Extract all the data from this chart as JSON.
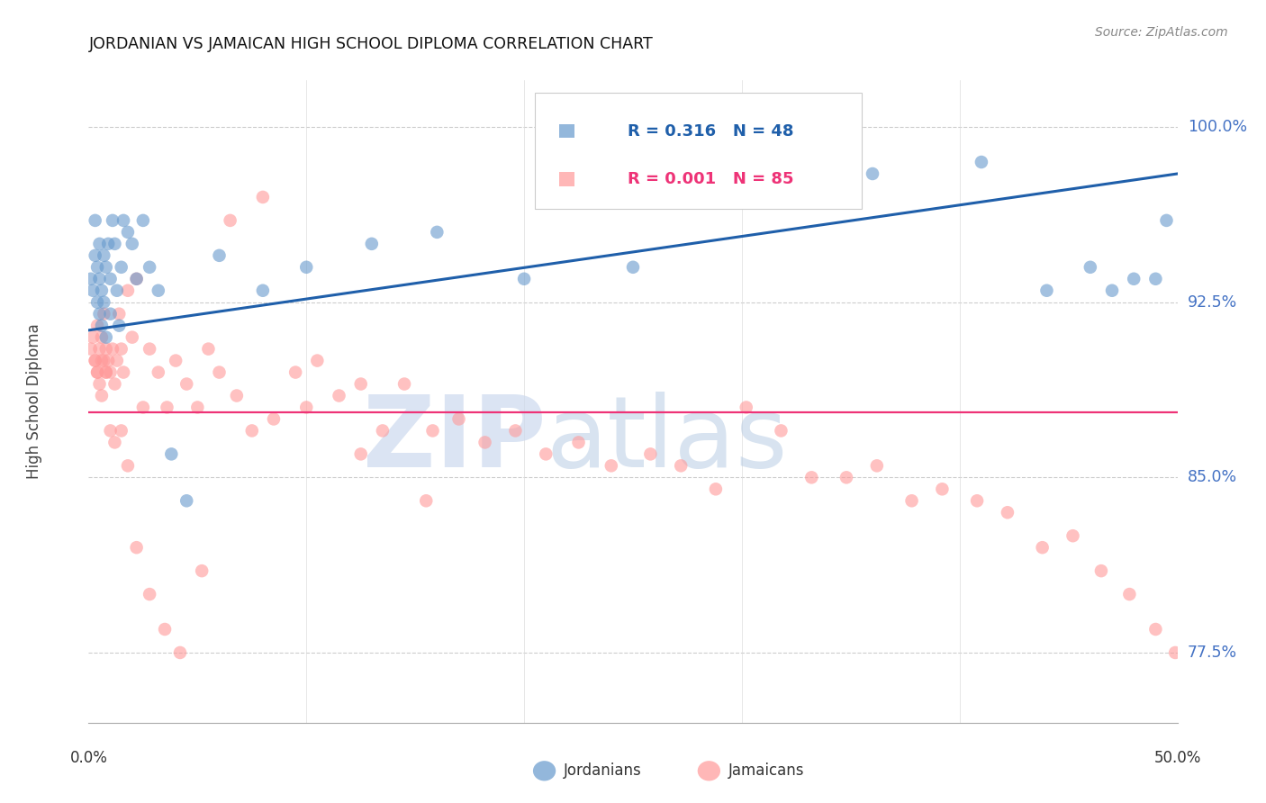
{
  "title": "JORDANIAN VS JAMAICAN HIGH SCHOOL DIPLOMA CORRELATION CHART",
  "source": "Source: ZipAtlas.com",
  "ylabel": "High School Diploma",
  "y_ticks": [
    0.775,
    0.85,
    0.925,
    1.0
  ],
  "y_tick_labels": [
    "77.5%",
    "85.0%",
    "92.5%",
    "100.0%"
  ],
  "y_tick_color": "#4472C4",
  "blue_color": "#6699CC",
  "pink_color": "#FF9999",
  "trend_blue": "#1f5faa",
  "trend_pink": "#ee3377",
  "xlim": [
    0.0,
    0.5
  ],
  "ylim": [
    0.745,
    1.02
  ],
  "pink_trend_y": 0.878,
  "blue_trend_x": [
    0.0,
    0.5
  ],
  "blue_trend_y": [
    0.913,
    0.98
  ],
  "jordanians_x": [
    0.001,
    0.002,
    0.003,
    0.003,
    0.004,
    0.004,
    0.005,
    0.005,
    0.005,
    0.006,
    0.006,
    0.007,
    0.007,
    0.008,
    0.008,
    0.009,
    0.01,
    0.01,
    0.011,
    0.012,
    0.013,
    0.014,
    0.015,
    0.016,
    0.018,
    0.02,
    0.022,
    0.025,
    0.028,
    0.032,
    0.038,
    0.045,
    0.06,
    0.08,
    0.1,
    0.13,
    0.16,
    0.2,
    0.25,
    0.31,
    0.36,
    0.41,
    0.44,
    0.46,
    0.47,
    0.48,
    0.49,
    0.495
  ],
  "jordanians_y": [
    0.935,
    0.93,
    0.945,
    0.96,
    0.925,
    0.94,
    0.92,
    0.935,
    0.95,
    0.915,
    0.93,
    0.945,
    0.925,
    0.91,
    0.94,
    0.95,
    0.935,
    0.92,
    0.96,
    0.95,
    0.93,
    0.915,
    0.94,
    0.96,
    0.955,
    0.95,
    0.935,
    0.96,
    0.94,
    0.93,
    0.86,
    0.84,
    0.945,
    0.93,
    0.94,
    0.95,
    0.955,
    0.935,
    0.94,
    0.97,
    0.98,
    0.985,
    0.93,
    0.94,
    0.93,
    0.935,
    0.935,
    0.96
  ],
  "jamaicans_x": [
    0.001,
    0.002,
    0.003,
    0.004,
    0.004,
    0.005,
    0.006,
    0.006,
    0.007,
    0.008,
    0.008,
    0.009,
    0.01,
    0.011,
    0.012,
    0.013,
    0.014,
    0.015,
    0.016,
    0.018,
    0.02,
    0.022,
    0.025,
    0.028,
    0.032,
    0.036,
    0.04,
    0.045,
    0.05,
    0.055,
    0.06,
    0.068,
    0.075,
    0.085,
    0.095,
    0.105,
    0.115,
    0.125,
    0.135,
    0.145,
    0.158,
    0.17,
    0.182,
    0.196,
    0.21,
    0.225,
    0.24,
    0.258,
    0.272,
    0.288,
    0.302,
    0.318,
    0.332,
    0.348,
    0.362,
    0.378,
    0.392,
    0.408,
    0.422,
    0.438,
    0.452,
    0.465,
    0.478,
    0.49,
    0.499,
    0.003,
    0.004,
    0.005,
    0.006,
    0.007,
    0.008,
    0.01,
    0.012,
    0.015,
    0.018,
    0.022,
    0.028,
    0.035,
    0.042,
    0.052,
    0.065,
    0.08,
    0.1,
    0.125,
    0.155
  ],
  "jamaicans_y": [
    0.905,
    0.91,
    0.9,
    0.895,
    0.915,
    0.905,
    0.91,
    0.9,
    0.92,
    0.895,
    0.905,
    0.9,
    0.895,
    0.905,
    0.89,
    0.9,
    0.92,
    0.905,
    0.895,
    0.93,
    0.91,
    0.935,
    0.88,
    0.905,
    0.895,
    0.88,
    0.9,
    0.89,
    0.88,
    0.905,
    0.895,
    0.885,
    0.87,
    0.875,
    0.895,
    0.9,
    0.885,
    0.89,
    0.87,
    0.89,
    0.87,
    0.875,
    0.865,
    0.87,
    0.86,
    0.865,
    0.855,
    0.86,
    0.855,
    0.845,
    0.88,
    0.87,
    0.85,
    0.85,
    0.855,
    0.84,
    0.845,
    0.84,
    0.835,
    0.82,
    0.825,
    0.81,
    0.8,
    0.785,
    0.775,
    0.9,
    0.895,
    0.89,
    0.885,
    0.9,
    0.895,
    0.87,
    0.865,
    0.87,
    0.855,
    0.82,
    0.8,
    0.785,
    0.775,
    0.81,
    0.96,
    0.97,
    0.88,
    0.86,
    0.84
  ]
}
